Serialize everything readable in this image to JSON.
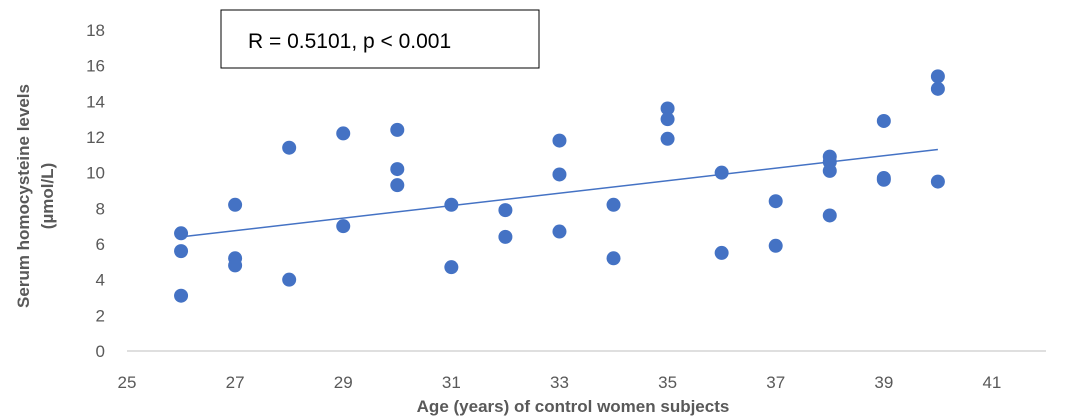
{
  "chart_data": {
    "type": "scatter",
    "title": "",
    "xlabel": "Age (years) of control women subjects",
    "ylabel_line1": "Serum homocysteine levels",
    "ylabel_line2": "(µmol/L)",
    "xlim": [
      25,
      42
    ],
    "ylim": [
      0,
      18
    ],
    "xticks": [
      25,
      27,
      29,
      31,
      33,
      35,
      37,
      39,
      41
    ],
    "yticks": [
      0,
      2,
      4,
      6,
      8,
      10,
      12,
      14,
      16,
      18
    ],
    "grid": false,
    "legend": "none",
    "annotation": "R = 0.5101, p < 0.001",
    "marker_color": "#4472C4",
    "trendline": {
      "x": [
        26,
        40
      ],
      "y": [
        6.4,
        11.3
      ]
    },
    "points": [
      {
        "x": 26,
        "y": 6.6
      },
      {
        "x": 26,
        "y": 5.6
      },
      {
        "x": 26,
        "y": 3.1
      },
      {
        "x": 27,
        "y": 8.2
      },
      {
        "x": 27,
        "y": 5.2
      },
      {
        "x": 27,
        "y": 4.8
      },
      {
        "x": 28,
        "y": 11.4
      },
      {
        "x": 28,
        "y": 4.0
      },
      {
        "x": 29,
        "y": 12.2
      },
      {
        "x": 29,
        "y": 7.0
      },
      {
        "x": 30,
        "y": 12.4
      },
      {
        "x": 30,
        "y": 10.2
      },
      {
        "x": 30,
        "y": 9.3
      },
      {
        "x": 31,
        "y": 8.2
      },
      {
        "x": 31,
        "y": 4.7
      },
      {
        "x": 32,
        "y": 7.9
      },
      {
        "x": 32,
        "y": 6.4
      },
      {
        "x": 33,
        "y": 11.8
      },
      {
        "x": 33,
        "y": 9.9
      },
      {
        "x": 33,
        "y": 6.7
      },
      {
        "x": 34,
        "y": 8.2
      },
      {
        "x": 34,
        "y": 5.2
      },
      {
        "x": 35,
        "y": 13.6
      },
      {
        "x": 35,
        "y": 13.0
      },
      {
        "x": 35,
        "y": 11.9
      },
      {
        "x": 36,
        "y": 10.0
      },
      {
        "x": 36,
        "y": 5.5
      },
      {
        "x": 37,
        "y": 8.4
      },
      {
        "x": 37,
        "y": 5.9
      },
      {
        "x": 38,
        "y": 10.9
      },
      {
        "x": 38,
        "y": 10.6
      },
      {
        "x": 38,
        "y": 10.1
      },
      {
        "x": 38,
        "y": 7.6
      },
      {
        "x": 39,
        "y": 12.9
      },
      {
        "x": 39,
        "y": 9.7
      },
      {
        "x": 39,
        "y": 9.6
      },
      {
        "x": 40,
        "y": 15.4
      },
      {
        "x": 40,
        "y": 14.7
      },
      {
        "x": 40,
        "y": 9.5
      }
    ]
  }
}
